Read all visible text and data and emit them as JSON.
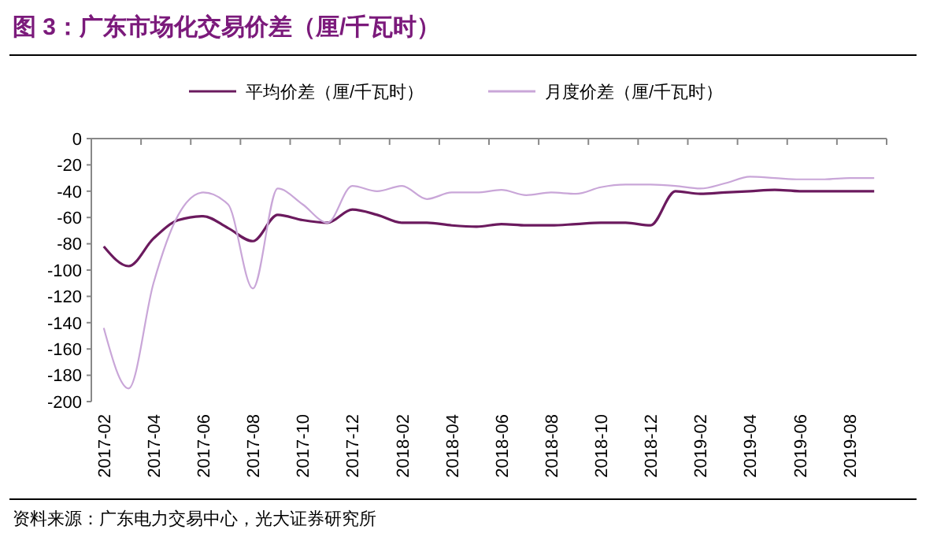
{
  "chart_data": {
    "type": "line",
    "title": "图 3：广东市场化交易价差（厘/千瓦时）",
    "categories": [
      "2017-02",
      null,
      "2017-04",
      null,
      "2017-06",
      null,
      "2017-08",
      null,
      "2017-10",
      null,
      "2017-12",
      null,
      "2018-02",
      null,
      "2018-04",
      null,
      "2018-06",
      null,
      "2018-08",
      null,
      "2018-10",
      null,
      "2018-12",
      null,
      "2019-02",
      null,
      "2019-04",
      null,
      "2019-06",
      null,
      "2019-08",
      null
    ],
    "series": [
      {
        "name": "平均价差（厘/千瓦时）",
        "color": "#6b1a5e",
        "values": [
          -82,
          -97,
          -76,
          -62,
          -59,
          -68,
          -78,
          -58,
          -62,
          -64,
          -54,
          -58,
          -64,
          -64,
          -66,
          -67,
          -65,
          -66,
          -66,
          -65,
          -64,
          -64,
          -66,
          -40,
          -42,
          -41,
          -40,
          -39,
          -40,
          -40,
          -40,
          -40
        ]
      },
      {
        "name": "月度价差（厘/千瓦时）",
        "color": "#c9a6d8",
        "values": [
          -144,
          -190,
          -110,
          -58,
          -41,
          -50,
          -114,
          -38,
          -50,
          -64,
          -36,
          -40,
          -36,
          -46,
          -41,
          -41,
          -39,
          -43,
          -41,
          -42,
          -37,
          -35,
          -35,
          -36,
          -38,
          -34,
          -29,
          -30,
          -31,
          -31,
          -30,
          -30
        ]
      }
    ],
    "ylim": [
      -200,
      0
    ],
    "yticks": [
      -200,
      -180,
      -160,
      -140,
      -120,
      -100,
      -80,
      -60,
      -40,
      -20,
      0
    ],
    "legend": "top",
    "grid": false,
    "annotations": [
      "资料来源：广东电力交易中心，光大证券研究所"
    ]
  }
}
